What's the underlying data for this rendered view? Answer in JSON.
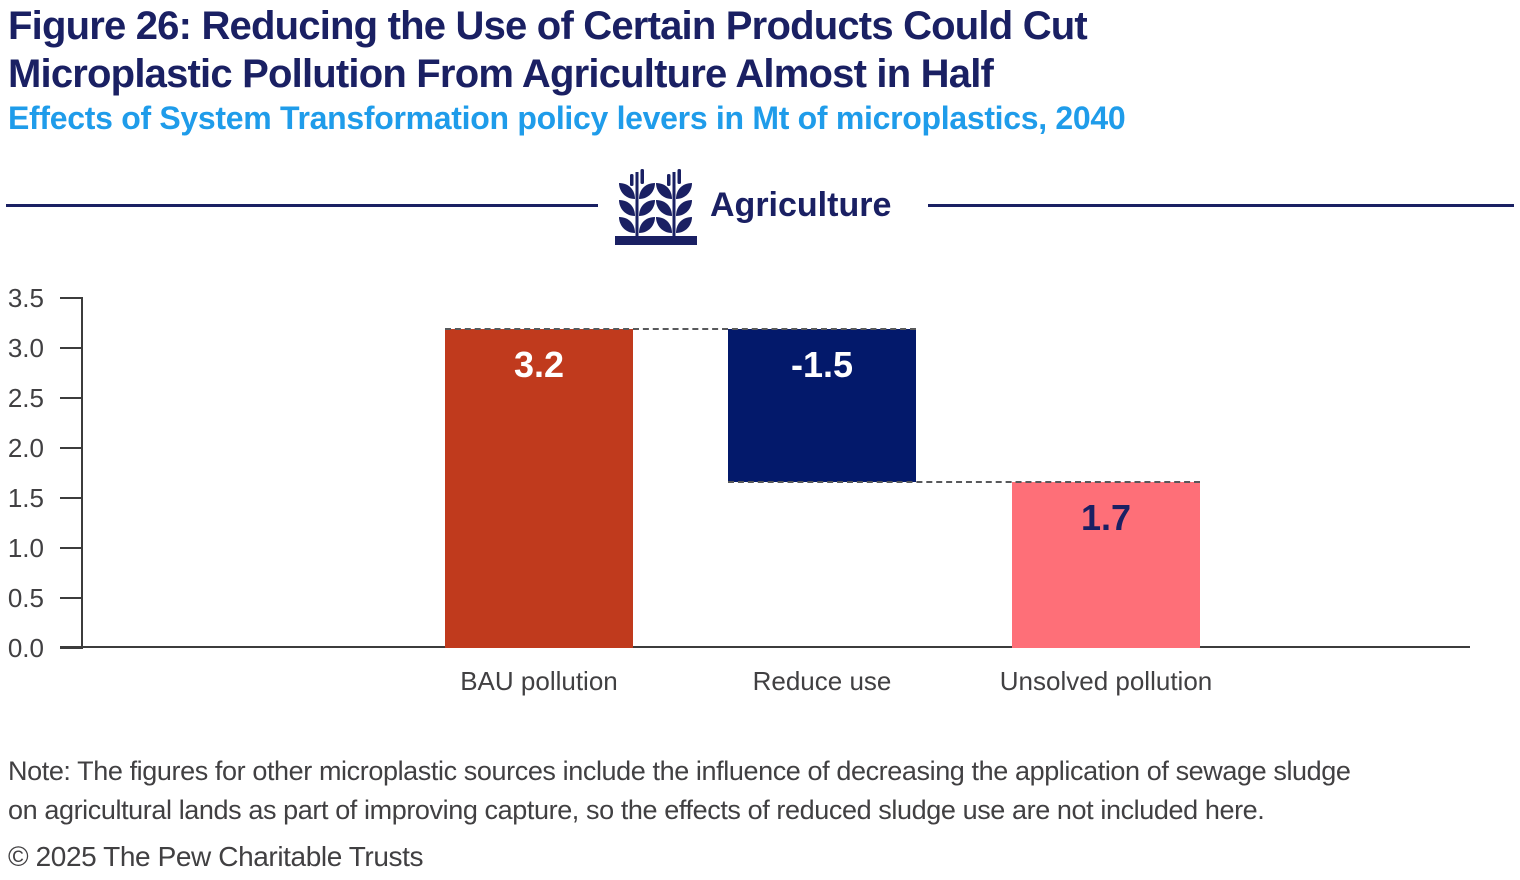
{
  "header": {
    "title_line1": "Figure 26: Reducing the Use of Certain Products Could Cut",
    "title_line2": "Microplastic Pollution From Agriculture Almost in Half",
    "subtitle": "Effects of System Transformation policy levers in Mt of microplastics, 2040"
  },
  "section": {
    "label": "Agriculture",
    "icon": "wheat-icon"
  },
  "chart_data": {
    "type": "bar",
    "subtype": "waterfall",
    "title": "Agriculture",
    "unit": "Mt of microplastics",
    "year": "2040",
    "ylim": [
      0,
      3.5
    ],
    "yticks": [
      "0.0",
      "0.5",
      "1.0",
      "1.5",
      "2.0",
      "2.5",
      "3.0",
      "3.5"
    ],
    "grid": false,
    "legend": "none",
    "categories": [
      "BAU pollution",
      "Reduce use",
      "Unsolved pollution"
    ],
    "values": [
      3.2,
      -1.5,
      1.7
    ],
    "bars": [
      {
        "category": "BAU pollution",
        "value": 3.2,
        "value_label": "3.2",
        "plot_from": 0,
        "plot_to": 3.19,
        "color": "#C03A1D",
        "label_color": "#FFFFFF"
      },
      {
        "category": "Reduce use",
        "value": -1.5,
        "value_label": "-1.5",
        "plot_from": 1.66,
        "plot_to": 3.19,
        "color": "#03196B",
        "label_color": "#FFFFFF"
      },
      {
        "category": "Unsolved pollution",
        "value": 1.7,
        "value_label": "1.7",
        "plot_from": 0,
        "plot_to": 1.66,
        "color": "#FE6F78",
        "label_color": "#1A2063"
      }
    ],
    "connectors": [
      {
        "at": 3.19,
        "from_bar": 0,
        "to_bar": 1
      },
      {
        "at": 1.66,
        "from_bar": 1,
        "to_bar": 2
      }
    ]
  },
  "note": {
    "lines": [
      "Note: The figures for other microplastic sources include the influence of decreasing the application of sewage sludge",
      "on agricultural lands as part of improving capture, so the effects of reduced sludge use are not included here."
    ]
  },
  "footer": {
    "copyright": "© 2025 The Pew Charitable Trusts"
  },
  "colors": {
    "title_navy": "#1A2063",
    "subtitle_blue": "#1F9CEA",
    "bar_red": "#C03A1D",
    "bar_navy": "#03196B",
    "bar_pink": "#FE6F78",
    "axis_gray": "#414042",
    "axis_line": "#3C3C3C",
    "connector_dash": "#58595B"
  }
}
